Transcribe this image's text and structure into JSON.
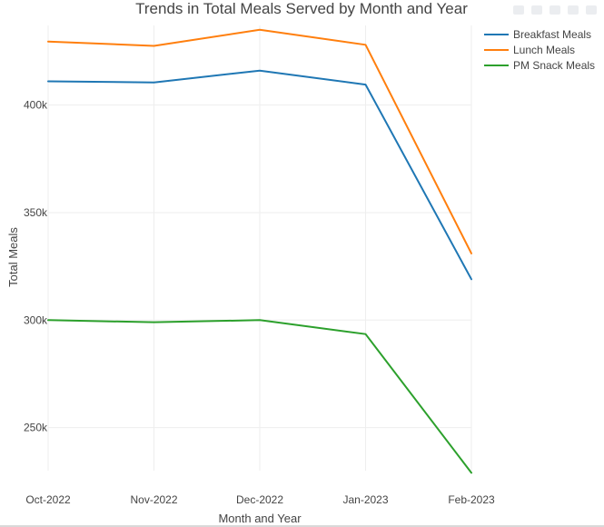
{
  "chart_data": {
    "type": "line",
    "title": "Trends in Total Meals Served by Month and Year",
    "xlabel": "Month and Year",
    "ylabel": "Total Meals",
    "categories": [
      "Oct-2022",
      "Nov-2022",
      "Dec-2022",
      "Jan-2023",
      "Feb-2023"
    ],
    "y_ticks": [
      250000,
      300000,
      350000,
      400000
    ],
    "y_tick_labels": [
      "250k",
      "300k",
      "350k",
      "400k"
    ],
    "ylim": [
      230000,
      437000
    ],
    "grid": true,
    "legend_position": "top-right",
    "series": [
      {
        "name": "Breakfast Meals",
        "color": "#1f77b4",
        "values": [
          411000,
          410500,
          416000,
          409500,
          319000
        ]
      },
      {
        "name": "Lunch Meals",
        "color": "#ff7f0e",
        "values": [
          429500,
          427500,
          435000,
          428000,
          331000
        ]
      },
      {
        "name": "PM Snack Meals",
        "color": "#2ca02c",
        "values": [
          300000,
          299000,
          300000,
          293500,
          229000
        ]
      }
    ]
  }
}
